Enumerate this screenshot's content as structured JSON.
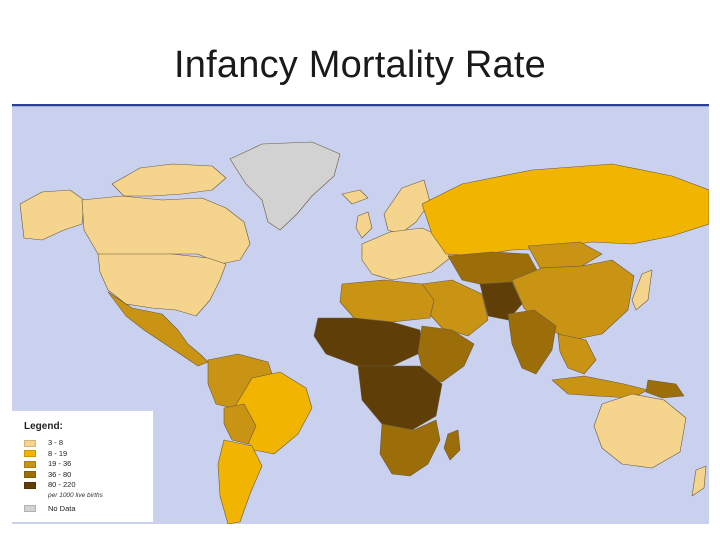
{
  "slide": {
    "title": "Infancy Mortality Rate"
  },
  "map": {
    "background": "#c9d1ef",
    "border_color": "#2a3f95",
    "legend": {
      "title": "Legend:",
      "items": [
        {
          "label": "3 - 8",
          "color": "#f5d48e"
        },
        {
          "label": "8 - 19",
          "color": "#f1b400"
        },
        {
          "label": "19 - 36",
          "color": "#c99414"
        },
        {
          "label": "36 - 80",
          "color": "#9b6e0a"
        },
        {
          "label": "80 - 220",
          "color": "#5f3f07"
        }
      ],
      "note": "per 1000 live births",
      "no_data": {
        "label": "No Data",
        "color": "#d2d2d2"
      }
    }
  }
}
